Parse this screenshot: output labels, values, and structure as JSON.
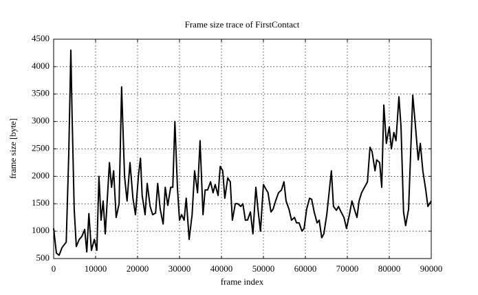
{
  "chart_data": {
    "type": "line",
    "title": "Frame size trace of FirstContact",
    "x_label": "frame index",
    "y_label": "frame size [byte]",
    "x": [
      0,
      650,
      1300,
      2000,
      3000,
      3600,
      4100,
      4400,
      4900,
      5400,
      6100,
      6700,
      7400,
      7900,
      8400,
      9000,
      9700,
      10300,
      10800,
      11300,
      11800,
      12300,
      13300,
      13800,
      14300,
      14900,
      15600,
      16200,
      16900,
      17500,
      18200,
      18900,
      19500,
      20200,
      20700,
      21100,
      21800,
      22300,
      23000,
      23600,
      24300,
      24800,
      25400,
      26100,
      26600,
      27200,
      27900,
      28400,
      28900,
      29500,
      30000,
      30500,
      31100,
      31600,
      32300,
      33000,
      33600,
      34300,
      34900,
      35600,
      36100,
      36700,
      37400,
      38000,
      38500,
      39200,
      39700,
      40300,
      40800,
      41500,
      42100,
      42600,
      43300,
      43900,
      44600,
      45100,
      45700,
      46200,
      46900,
      47500,
      48200,
      48700,
      49300,
      50000,
      50500,
      51100,
      51800,
      52300,
      52900,
      53600,
      54300,
      54900,
      55400,
      56100,
      56700,
      57400,
      57900,
      58500,
      59200,
      59700,
      60300,
      61000,
      61500,
      62100,
      62800,
      63300,
      63900,
      64400,
      65100,
      66200,
      66700,
      67400,
      67900,
      68500,
      69200,
      69800,
      70500,
      71100,
      71600,
      72300,
      72800,
      73400,
      74100,
      74800,
      75400,
      75900,
      76600,
      77000,
      77700,
      78200,
      78700,
      79300,
      80000,
      80500,
      81100,
      81600,
      82300,
      82800,
      83400,
      83900,
      84600,
      85600,
      86200,
      86900,
      87400,
      88000,
      88700,
      89200,
      90000
    ],
    "series": [
      {
        "name": "frame size",
        "color": "#000000",
        "values": [
          1050,
          600,
          560,
          700,
          800,
          2400,
          4300,
          3100,
          1400,
          720,
          850,
          900,
          1030,
          620,
          1320,
          650,
          850,
          650,
          2000,
          1200,
          1550,
          950,
          2250,
          1800,
          2100,
          1250,
          1500,
          3630,
          2000,
          1550,
          2250,
          1600,
          1300,
          2000,
          2330,
          1650,
          1300,
          1870,
          1450,
          1300,
          1330,
          1870,
          1400,
          1130,
          1800,
          1470,
          1800,
          1800,
          3000,
          1800,
          1200,
          1300,
          1200,
          1600,
          850,
          1300,
          2100,
          1700,
          2650,
          1300,
          1750,
          1750,
          1900,
          1700,
          1850,
          1650,
          2180,
          2100,
          1600,
          1970,
          1900,
          1200,
          1500,
          1500,
          1450,
          1500,
          1200,
          1200,
          1350,
          950,
          1800,
          1400,
          1000,
          1850,
          1780,
          1700,
          1350,
          1400,
          1550,
          1700,
          1750,
          1900,
          1550,
          1400,
          1200,
          1250,
          1150,
          1150,
          1000,
          1050,
          1400,
          1600,
          1580,
          1350,
          1150,
          1200,
          880,
          950,
          1300,
          2100,
          1450,
          1380,
          1450,
          1350,
          1250,
          1050,
          1300,
          1550,
          1420,
          1250,
          1550,
          1700,
          1800,
          1900,
          2530,
          2450,
          2100,
          2300,
          2250,
          1800,
          3300,
          2600,
          2900,
          2500,
          2800,
          2650,
          3450,
          2900,
          1350,
          1100,
          1400,
          3480,
          2950,
          2300,
          2600,
          2100,
          1750,
          1450,
          1550
        ]
      }
    ],
    "xlim": [
      0,
      90000
    ],
    "xticks": [
      0,
      10000,
      20000,
      30000,
      40000,
      50000,
      60000,
      70000,
      80000,
      90000
    ],
    "ylim": [
      500,
      4500
    ],
    "yticks": [
      500,
      1000,
      1500,
      2000,
      2500,
      3000,
      3500,
      4000,
      4500
    ],
    "grid": true
  }
}
